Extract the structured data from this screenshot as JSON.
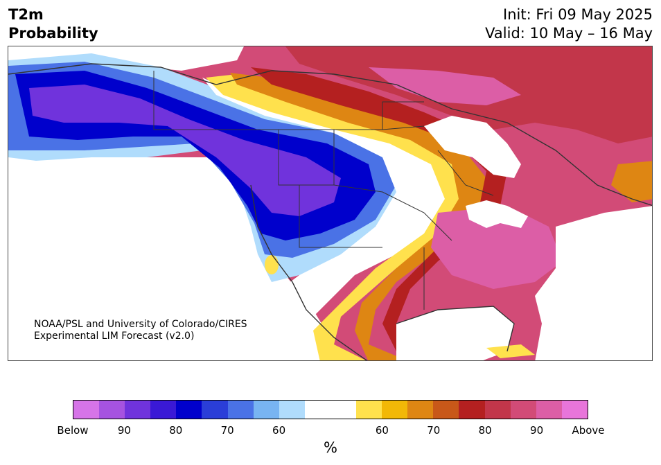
{
  "header": {
    "title_line1": "T2m",
    "title_line2": "Probability",
    "init": "Init: Fri 09 May 2025",
    "valid": "Valid: 10 May – 16 May"
  },
  "credit": {
    "line1": "NOAA/PSL and University of Colorado/CIRES",
    "line2": "Experimental LIM Forecast (v2.0)"
  },
  "colorbar": {
    "unit": "%",
    "colors": [
      "#d674e8",
      "#a653e0",
      "#7033dc",
      "#3a19d6",
      "#0000cc",
      "#2a3ed8",
      "#4a72e6",
      "#78b4f2",
      "#b0dcfc",
      "#ffffff",
      "#ffffff",
      "#ffe14d",
      "#f2b807",
      "#de8613",
      "#c85819",
      "#b42020",
      "#c2364a",
      "#d24b77",
      "#dc5ea6",
      "#e875da"
    ],
    "labels": [
      "Below",
      "90",
      "80",
      "70",
      "60",
      "60",
      "70",
      "80",
      "90",
      "Above"
    ]
  },
  "palette": {
    "below_far": "#7033dc",
    "below_mid": "#0000cc",
    "below_near": "#78b4f2",
    "near": "#ffffff",
    "above_near": "#ffe14d",
    "above_mid": "#de8613",
    "above_high": "#b42020",
    "above_far": "#d24b77",
    "water": "#ffffff"
  }
}
